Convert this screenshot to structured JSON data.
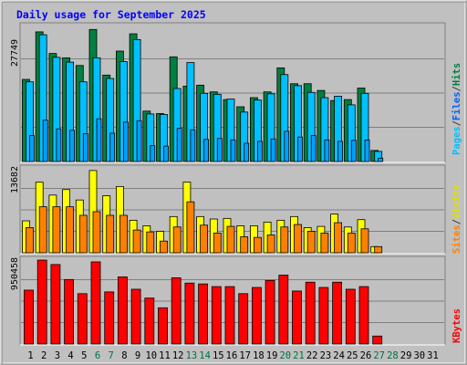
{
  "chart_data": [
    {
      "type": "bar",
      "title": "Daily usage for September 2025",
      "ymax_label": "27749",
      "y_max": 27749,
      "legend": [
        "Hits",
        "Files",
        "Pages"
      ],
      "days": [
        "1",
        "2",
        "3",
        "4",
        "5",
        "6",
        "7",
        "8",
        "9",
        "10",
        "11",
        "12",
        "13",
        "14",
        "15",
        "16",
        "17",
        "18",
        "19",
        "20",
        "21",
        "22",
        "23",
        "24",
        "25",
        "26",
        "27",
        "28",
        "29",
        "30",
        "31"
      ],
      "weekend_days": [
        "6",
        "7",
        "13",
        "14",
        "20",
        "21",
        "27",
        "28"
      ],
      "series": [
        {
          "name": "Hits",
          "values": [
            17100,
            27000,
            22500,
            21600,
            20000,
            27500,
            18000,
            23000,
            26600,
            10500,
            10000,
            21800,
            15700,
            15900,
            14500,
            12900,
            11400,
            13300,
            14500,
            19500,
            16200,
            16200,
            14800,
            12700,
            12900,
            15300,
            2300,
            0,
            0,
            0,
            0
          ]
        },
        {
          "name": "Files",
          "values": [
            16600,
            26400,
            21700,
            20700,
            16600,
            21600,
            17300,
            20800,
            25400,
            9900,
            9800,
            15200,
            20600,
            14200,
            14000,
            13000,
            10300,
            12800,
            14100,
            18100,
            15800,
            14400,
            13300,
            13600,
            11800,
            14200,
            2100,
            0,
            0,
            0,
            0
          ]
        },
        {
          "name": "Pages",
          "values": [
            5400,
            8600,
            6800,
            6500,
            5800,
            8900,
            5900,
            8200,
            8500,
            3300,
            3200,
            6900,
            6600,
            4600,
            4800,
            4500,
            3800,
            4200,
            4700,
            6300,
            5100,
            5400,
            4500,
            4200,
            4400,
            4500,
            700,
            0,
            0,
            0,
            0
          ]
        }
      ]
    },
    {
      "type": "bar",
      "ymax_label": "13682",
      "y_max": 13682,
      "legend": [
        "Visits",
        "Sites"
      ],
      "series": [
        {
          "name": "Visits",
          "values": [
            5200,
            11500,
            9400,
            10300,
            8600,
            13400,
            9300,
            10800,
            5300,
            4400,
            3500,
            5900,
            11500,
            5900,
            5500,
            5600,
            4400,
            4400,
            5000,
            5300,
            5900,
            4100,
            4300,
            6300,
            4200,
            5400,
            1000,
            0,
            0,
            0,
            0
          ]
        },
        {
          "name": "Sites",
          "values": [
            4100,
            7500,
            7500,
            7500,
            6100,
            6700,
            6100,
            6100,
            3700,
            3400,
            1900,
            4200,
            8300,
            4500,
            3200,
            4300,
            2600,
            2500,
            2900,
            4200,
            4600,
            3500,
            3200,
            4900,
            3200,
            3900,
            1000,
            0,
            0,
            0,
            0
          ]
        }
      ]
    },
    {
      "type": "bar",
      "ymax_label": "950458",
      "y_max": 950458,
      "legend": [
        "KBytes"
      ],
      "series": [
        {
          "name": "KBytes",
          "values": [
            610000,
            950000,
            900000,
            730000,
            570000,
            930000,
            590000,
            760000,
            620000,
            520000,
            410000,
            750000,
            690000,
            680000,
            650000,
            650000,
            570000,
            640000,
            720000,
            780000,
            600000,
            700000,
            640000,
            700000,
            620000,
            650000,
            90000,
            0,
            0,
            0,
            0
          ]
        }
      ]
    }
  ],
  "colors": {
    "background": "#c0c0c0",
    "panel": "#c0c0c0",
    "title": "#0000ff",
    "hits": "#008040",
    "files": "#00c0ff",
    "pages": "#00a0ff",
    "visits": "#ffff00",
    "sites": "#ff8000",
    "kbytes": "#ff0000",
    "weekday_label": "#000000",
    "weekend_label": "#007040",
    "grid": "#808080"
  }
}
